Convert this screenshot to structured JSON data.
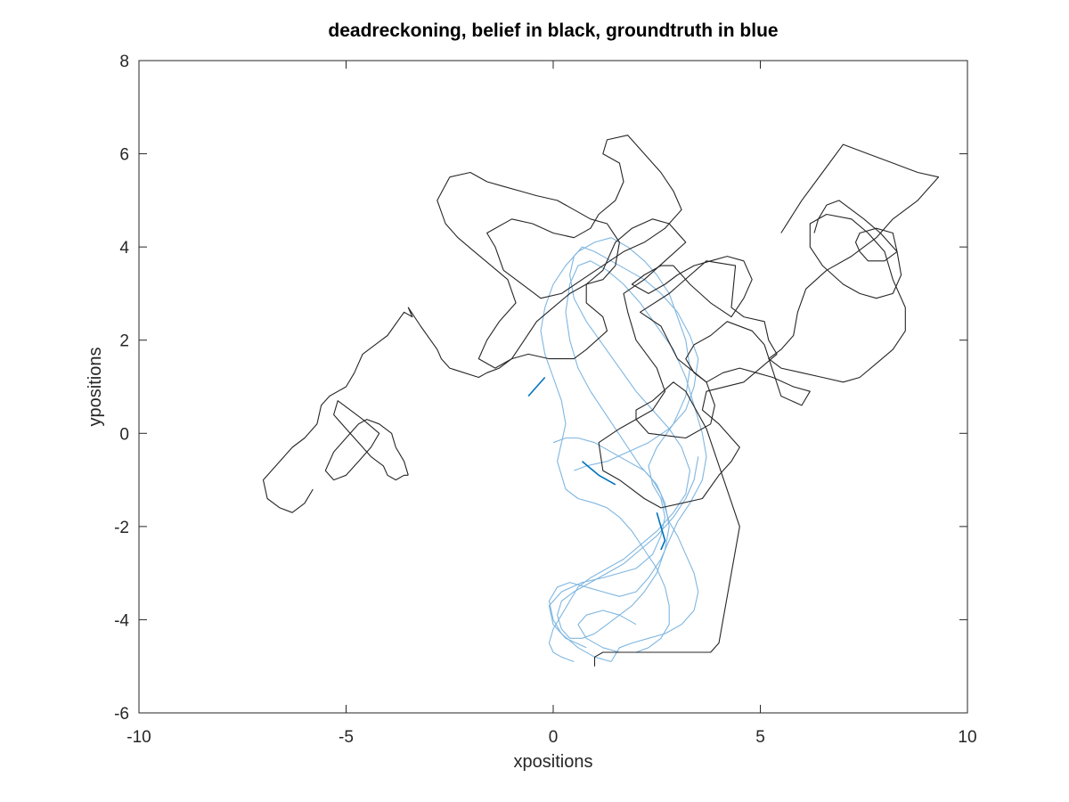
{
  "chart_data": {
    "type": "line",
    "title": "deadreckoning, belief in black, groundtruth in blue",
    "xlabel": "xpositions",
    "ylabel": "ypositions",
    "xlim": [
      -10,
      10
    ],
    "ylim": [
      -6,
      8
    ],
    "xticks": [
      -10,
      -5,
      0,
      5,
      10
    ],
    "yticks": [
      -6,
      -4,
      -2,
      0,
      2,
      4,
      6,
      8
    ],
    "xtick_labels": [
      "-10",
      "-5",
      "0",
      "5",
      "10"
    ],
    "ytick_labels": [
      "-6",
      "-4",
      "-2",
      "0",
      "2",
      "4",
      "6",
      "8"
    ],
    "grid": false,
    "colors": {
      "belief": "#262626",
      "groundtruth": "#7fb6e0",
      "groundtruth_dark": "#0072bd",
      "axes": "#262626"
    },
    "series": [
      {
        "role": "belief",
        "x": [
          1.0,
          1.0,
          1.2,
          3.8,
          4.0,
          4.5,
          3.7,
          3.2,
          2.9,
          2.4,
          2.0,
          2.0,
          2.3,
          3.2,
          3.8,
          3.9,
          3.7,
          3.0,
          2.6,
          2.1,
          2.8,
          3.7,
          4.4,
          4.3,
          4.6,
          5.1,
          5.2,
          5.4,
          4.6,
          3.7,
          3.6,
          4.0,
          4.5,
          4.3,
          4.0,
          3.6,
          2.6,
          2.2,
          1.6,
          1.2,
          1.1,
          1.6,
          2.4,
          2.7,
          2.5,
          2.0,
          1.8,
          1.7,
          2.2,
          2.7,
          3.2,
          2.8,
          2.4,
          1.9,
          1.5,
          1.2,
          0.8,
          0.8,
          1.2,
          1.3,
          0.8,
          0.5,
          -0.1,
          -0.6,
          -1.0,
          -1.3,
          -1.6,
          -1.8,
          -2.5,
          -2.7,
          -2.8,
          -3.2,
          -3.5,
          -3.4,
          -3.6,
          -4.0,
          -4.6,
          -4.8,
          -5.0,
          -5.4,
          -5.6,
          -5.7,
          -6.0,
          -6.3,
          -6.6,
          -7.0,
          -6.9,
          -6.6,
          -6.3,
          -6.0,
          -5.8
        ],
        "y": [
          -5.0,
          -4.8,
          -4.7,
          -4.7,
          -4.5,
          -2.0,
          0.1,
          0.9,
          1.1,
          0.7,
          0.5,
          0.3,
          0.0,
          -0.1,
          0.2,
          0.6,
          1.1,
          1.6,
          2.3,
          2.6,
          3.0,
          3.7,
          3.6,
          2.7,
          2.5,
          2.4,
          2.0,
          1.7,
          1.1,
          0.9,
          0.5,
          0.2,
          -0.3,
          -0.6,
          -0.9,
          -1.4,
          -1.6,
          -1.4,
          -1.0,
          -0.8,
          -0.2,
          0.1,
          0.5,
          0.9,
          1.4,
          2.0,
          2.6,
          3.0,
          3.3,
          3.7,
          4.1,
          4.5,
          4.6,
          4.4,
          4.1,
          3.5,
          3.2,
          2.8,
          2.5,
          2.2,
          1.8,
          1.6,
          1.6,
          1.7,
          1.6,
          1.4,
          1.3,
          1.2,
          1.4,
          1.6,
          1.8,
          2.3,
          2.7,
          2.5,
          2.6,
          2.1,
          1.7,
          1.3,
          1.0,
          0.8,
          0.6,
          0.2,
          -0.1,
          -0.3,
          -0.6,
          -1.0,
          -1.4,
          -1.6,
          -1.7,
          -1.5,
          -1.2
        ]
      },
      {
        "role": "belief",
        "x": [
          -3.5,
          -3.6,
          -3.8,
          -3.9,
          -4.2,
          -4.5,
          -4.7,
          -5.0,
          -5.3,
          -5.5,
          -5.3,
          -5.0,
          -4.7,
          -4.4,
          -4.2,
          -4.6,
          -4.9,
          -5.2,
          -5.3,
          -5.0,
          -4.7,
          -4.4,
          -4.1,
          -4.0,
          -3.8,
          -3.6,
          -3.5
        ],
        "y": [
          -0.9,
          -0.6,
          -0.3,
          0.0,
          0.2,
          0.3,
          0.2,
          -0.1,
          -0.4,
          -0.8,
          -1.0,
          -0.9,
          -0.6,
          -0.3,
          0.0,
          0.3,
          0.5,
          0.7,
          0.4,
          0.1,
          -0.2,
          -0.5,
          -0.7,
          -0.9,
          -1.0,
          -0.9,
          -0.9
        ]
      },
      {
        "role": "belief",
        "x": [
          -1.2,
          -1.4,
          -1.6,
          -1.0,
          -0.5,
          0.0,
          0.5,
          0.9,
          1.1,
          1.5,
          1.7,
          1.6,
          1.2,
          1.3,
          1.8,
          2.2,
          2.6,
          2.9,
          3.1,
          2.7,
          2.2,
          1.7,
          1.2,
          0.7,
          0.2,
          -0.3,
          -0.6,
          -0.9,
          -1.2
        ],
        "y": [
          3.5,
          4.0,
          4.3,
          4.6,
          4.5,
          4.3,
          4.2,
          4.4,
          4.7,
          5.0,
          5.4,
          5.8,
          6.0,
          6.3,
          6.4,
          6.0,
          5.6,
          5.2,
          4.8,
          4.4,
          4.1,
          3.9,
          3.6,
          3.3,
          3.0,
          2.9,
          3.1,
          3.3,
          3.5
        ]
      },
      {
        "role": "belief",
        "x": [
          -2.5,
          -2.8,
          -2.6,
          -2.3,
          -1.9,
          -1.5,
          -1.1,
          -0.9,
          -1.3,
          -1.6,
          -1.8,
          -1.4,
          -1.0,
          -0.7,
          -0.4,
          0.0,
          0.4,
          0.8,
          1.2,
          1.5,
          1.6,
          1.3,
          0.9,
          0.5,
          0.1,
          -0.4,
          -0.8,
          -1.2,
          -1.6,
          -2.0,
          -2.5
        ],
        "y": [
          5.5,
          5.0,
          4.5,
          4.2,
          3.9,
          3.6,
          3.3,
          2.8,
          2.4,
          2.0,
          1.6,
          1.4,
          1.6,
          2.0,
          2.4,
          2.7,
          3.0,
          3.2,
          3.3,
          3.6,
          4.1,
          4.5,
          4.6,
          4.8,
          5.0,
          5.1,
          5.2,
          5.3,
          5.4,
          5.6,
          5.5
        ]
      },
      {
        "role": "belief",
        "x": [
          5.5,
          6.0,
          6.5,
          7.0,
          7.6,
          8.2,
          8.8,
          9.3,
          8.8,
          8.2,
          7.8,
          7.2,
          6.6,
          6.1,
          5.9,
          5.8,
          5.5,
          5.2,
          5.5,
          6.0,
          6.5,
          7.0,
          7.4,
          7.8,
          8.2,
          8.5,
          8.5,
          8.2,
          8.0,
          7.6,
          7.2,
          6.6,
          6.2,
          6.2,
          6.5,
          7.0,
          7.4,
          7.8,
          8.2,
          8.4,
          8.3,
          7.9,
          7.5,
          7.2,
          6.9,
          6.6,
          6.4,
          6.3,
          6.3
        ],
        "y": [
          4.3,
          5.0,
          5.6,
          6.2,
          6.0,
          5.8,
          5.6,
          5.5,
          5.0,
          4.6,
          4.2,
          3.8,
          3.5,
          3.1,
          2.6,
          2.1,
          1.8,
          1.6,
          1.4,
          1.3,
          1.2,
          1.1,
          1.2,
          1.5,
          1.8,
          2.2,
          2.7,
          3.3,
          3.9,
          4.3,
          4.6,
          4.7,
          4.5,
          4.0,
          3.6,
          3.2,
          3.0,
          2.9,
          3.0,
          3.4,
          3.9,
          4.3,
          4.6,
          4.8,
          5.0,
          4.9,
          4.6,
          4.3,
          4.3
        ]
      },
      {
        "role": "belief",
        "x": [
          7.4,
          7.6,
          8.0,
          8.3,
          8.2,
          7.8,
          7.4,
          7.3,
          7.4
        ],
        "y": [
          3.9,
          3.7,
          3.7,
          3.9,
          4.3,
          4.4,
          4.3,
          4.1,
          3.9
        ]
      },
      {
        "role": "belief",
        "x": [
          5.1,
          4.8,
          4.2,
          3.8,
          3.4,
          3.2,
          3.4,
          3.7,
          4.1,
          4.5,
          4.9,
          5.3,
          5.8,
          6.2,
          6.0,
          5.5,
          5.1
        ],
        "y": [
          1.9,
          2.2,
          2.4,
          2.1,
          1.9,
          1.6,
          1.3,
          1.1,
          1.3,
          1.4,
          1.3,
          1.2,
          1.0,
          0.9,
          0.6,
          0.8,
          1.9
        ]
      },
      {
        "role": "belief",
        "x": [
          2.9,
          3.3,
          3.8,
          4.3,
          4.6,
          4.8,
          4.6,
          4.2,
          3.8,
          3.4,
          3.0,
          2.7,
          2.3,
          1.9,
          2.2,
          2.6,
          2.9
        ],
        "y": [
          3.6,
          3.2,
          2.8,
          2.5,
          2.9,
          3.3,
          3.7,
          3.8,
          3.7,
          3.6,
          3.4,
          3.2,
          3.0,
          3.2,
          3.4,
          3.6,
          3.6
        ]
      },
      {
        "role": "groundtruth",
        "x": [
          0.8,
          0.3,
          0.0,
          -0.1,
          0.2,
          0.7,
          1.2,
          1.6,
          2.0,
          2.4,
          2.6,
          2.7,
          2.6,
          2.4,
          2.3,
          2.5,
          2.9,
          3.2,
          3.3,
          3.2,
          3.0,
          2.8,
          2.5,
          2.2,
          1.8,
          1.4,
          1.0,
          0.6,
          0.3,
          0.0,
          -0.2,
          -0.3,
          -0.2,
          0.0,
          0.2,
          0.3,
          0.2,
          0.1,
          0.2,
          0.3,
          0.6,
          1.0,
          1.3,
          1.6,
          1.9,
          2.2,
          2.5,
          2.7,
          2.8,
          2.8,
          2.6,
          2.3,
          2.0,
          1.6,
          1.2,
          0.8,
          0.6,
          0.8,
          1.2,
          1.6,
          2.0
        ],
        "y": [
          -4.6,
          -4.4,
          -4.1,
          -3.7,
          -3.4,
          -3.2,
          -3.1,
          -3.0,
          -2.9,
          -2.6,
          -2.2,
          -1.8,
          -1.4,
          -1.1,
          -0.7,
          -0.3,
          0.2,
          0.8,
          1.4,
          2.0,
          2.5,
          3.0,
          3.4,
          3.7,
          4.0,
          4.2,
          4.1,
          3.9,
          3.6,
          3.2,
          2.7,
          2.2,
          1.7,
          1.2,
          0.7,
          0.2,
          -0.2,
          -0.6,
          -0.9,
          -1.2,
          -1.4,
          -1.5,
          -1.6,
          -1.8,
          -2.1,
          -2.5,
          -2.9,
          -3.3,
          -3.7,
          -4.1,
          -4.4,
          -4.6,
          -4.7,
          -4.7,
          -4.6,
          -4.4,
          -4.1,
          -3.9,
          -3.8,
          -3.9,
          -4.1
        ]
      },
      {
        "role": "groundtruth",
        "x": [
          1.4,
          1.0,
          0.6,
          0.2,
          0.0,
          -0.1,
          0.1,
          0.4,
          0.8,
          1.2,
          1.6,
          2.0,
          2.3,
          2.6,
          2.8,
          3.0,
          3.3,
          3.6,
          3.7,
          3.6,
          3.4,
          3.2,
          2.9,
          2.5,
          2.1,
          1.7,
          1.3,
          0.9,
          0.6,
          0.4,
          0.3,
          0.4,
          0.6,
          0.9,
          1.2,
          1.5,
          1.8,
          2.1,
          2.4,
          2.6,
          2.7,
          2.8,
          3.0,
          3.2,
          3.4,
          3.5,
          3.4,
          3.1,
          2.7,
          2.3,
          1.9,
          1.6,
          1.4
        ],
        "y": [
          -4.9,
          -4.8,
          -4.6,
          -4.3,
          -4.0,
          -3.6,
          -3.3,
          -3.2,
          -3.3,
          -3.4,
          -3.5,
          -3.4,
          -3.1,
          -2.7,
          -2.3,
          -1.9,
          -1.5,
          -1.0,
          -0.5,
          0.0,
          0.6,
          1.2,
          1.8,
          2.3,
          2.8,
          3.2,
          3.5,
          3.7,
          3.6,
          3.2,
          2.6,
          2.0,
          1.4,
          0.9,
          0.5,
          0.1,
          -0.3,
          -0.7,
          -1.0,
          -1.3,
          -1.6,
          -1.9,
          -2.2,
          -2.6,
          -3.0,
          -3.4,
          -3.8,
          -4.1,
          -4.3,
          -4.4,
          -4.5,
          -4.6,
          -4.9
        ]
      },
      {
        "role": "groundtruth",
        "x": [
          0.5,
          0.8,
          1.3,
          1.8,
          2.3,
          2.8,
          3.2,
          3.4,
          3.5,
          3.3,
          3.0,
          2.6,
          2.2,
          1.8,
          1.4,
          1.0,
          0.7,
          0.5,
          0.4,
          0.5,
          0.8,
          1.2,
          1.6,
          2.0,
          2.4,
          2.8,
          3.1,
          3.3,
          3.2,
          2.9,
          2.5,
          2.1,
          1.7,
          1.3,
          0.9,
          0.6,
          0.4,
          0.2,
          0.0,
          -0.1,
          0.0,
          0.2,
          0.5
        ],
        "y": [
          -0.8,
          -0.7,
          -0.6,
          -0.4,
          -0.2,
          0.1,
          0.5,
          1.0,
          1.6,
          2.1,
          2.6,
          3.0,
          3.3,
          3.5,
          3.7,
          3.9,
          4.0,
          3.8,
          3.4,
          2.9,
          2.4,
          1.9,
          1.4,
          0.9,
          0.5,
          0.1,
          -0.3,
          -0.8,
          -1.3,
          -1.7,
          -2.1,
          -2.4,
          -2.7,
          -2.9,
          -3.1,
          -3.3,
          -3.6,
          -3.9,
          -4.2,
          -4.5,
          -4.7,
          -4.8,
          -4.9
        ]
      },
      {
        "role": "groundtruth",
        "x": [
          0.0,
          0.3,
          0.6,
          1.0,
          1.4,
          1.8,
          2.2,
          2.5,
          2.7,
          2.8,
          2.7,
          2.5,
          2.2,
          1.9,
          1.6,
          1.3,
          1.0,
          0.7,
          0.4,
          0.2,
          0.1,
          0.2,
          0.5,
          0.9,
          1.3,
          1.7,
          2.1,
          2.5,
          2.9,
          3.2,
          3.4,
          3.5
        ],
        "y": [
          -0.2,
          -0.1,
          -0.1,
          -0.2,
          -0.4,
          -0.6,
          -0.8,
          -1.1,
          -1.5,
          -2.0,
          -2.5,
          -3.0,
          -3.4,
          -3.7,
          -3.9,
          -4.1,
          -4.3,
          -4.4,
          -4.4,
          -4.2,
          -3.9,
          -3.6,
          -3.4,
          -3.2,
          -3.0,
          -2.8,
          -2.5,
          -2.2,
          -1.8,
          -1.4,
          -1.0,
          -0.5
        ]
      },
      {
        "role": "groundtruth_dark",
        "x": [
          0.7,
          1.1,
          1.5
        ],
        "y": [
          -0.6,
          -0.9,
          -1.1
        ]
      },
      {
        "role": "groundtruth_dark",
        "x": [
          -0.6,
          -0.4,
          -0.2
        ],
        "y": [
          0.8,
          1.0,
          1.2
        ]
      },
      {
        "role": "groundtruth_dark",
        "x": [
          2.5,
          2.6,
          2.7,
          2.6
        ],
        "y": [
          -1.7,
          -2.0,
          -2.3,
          -2.5
        ]
      }
    ]
  }
}
